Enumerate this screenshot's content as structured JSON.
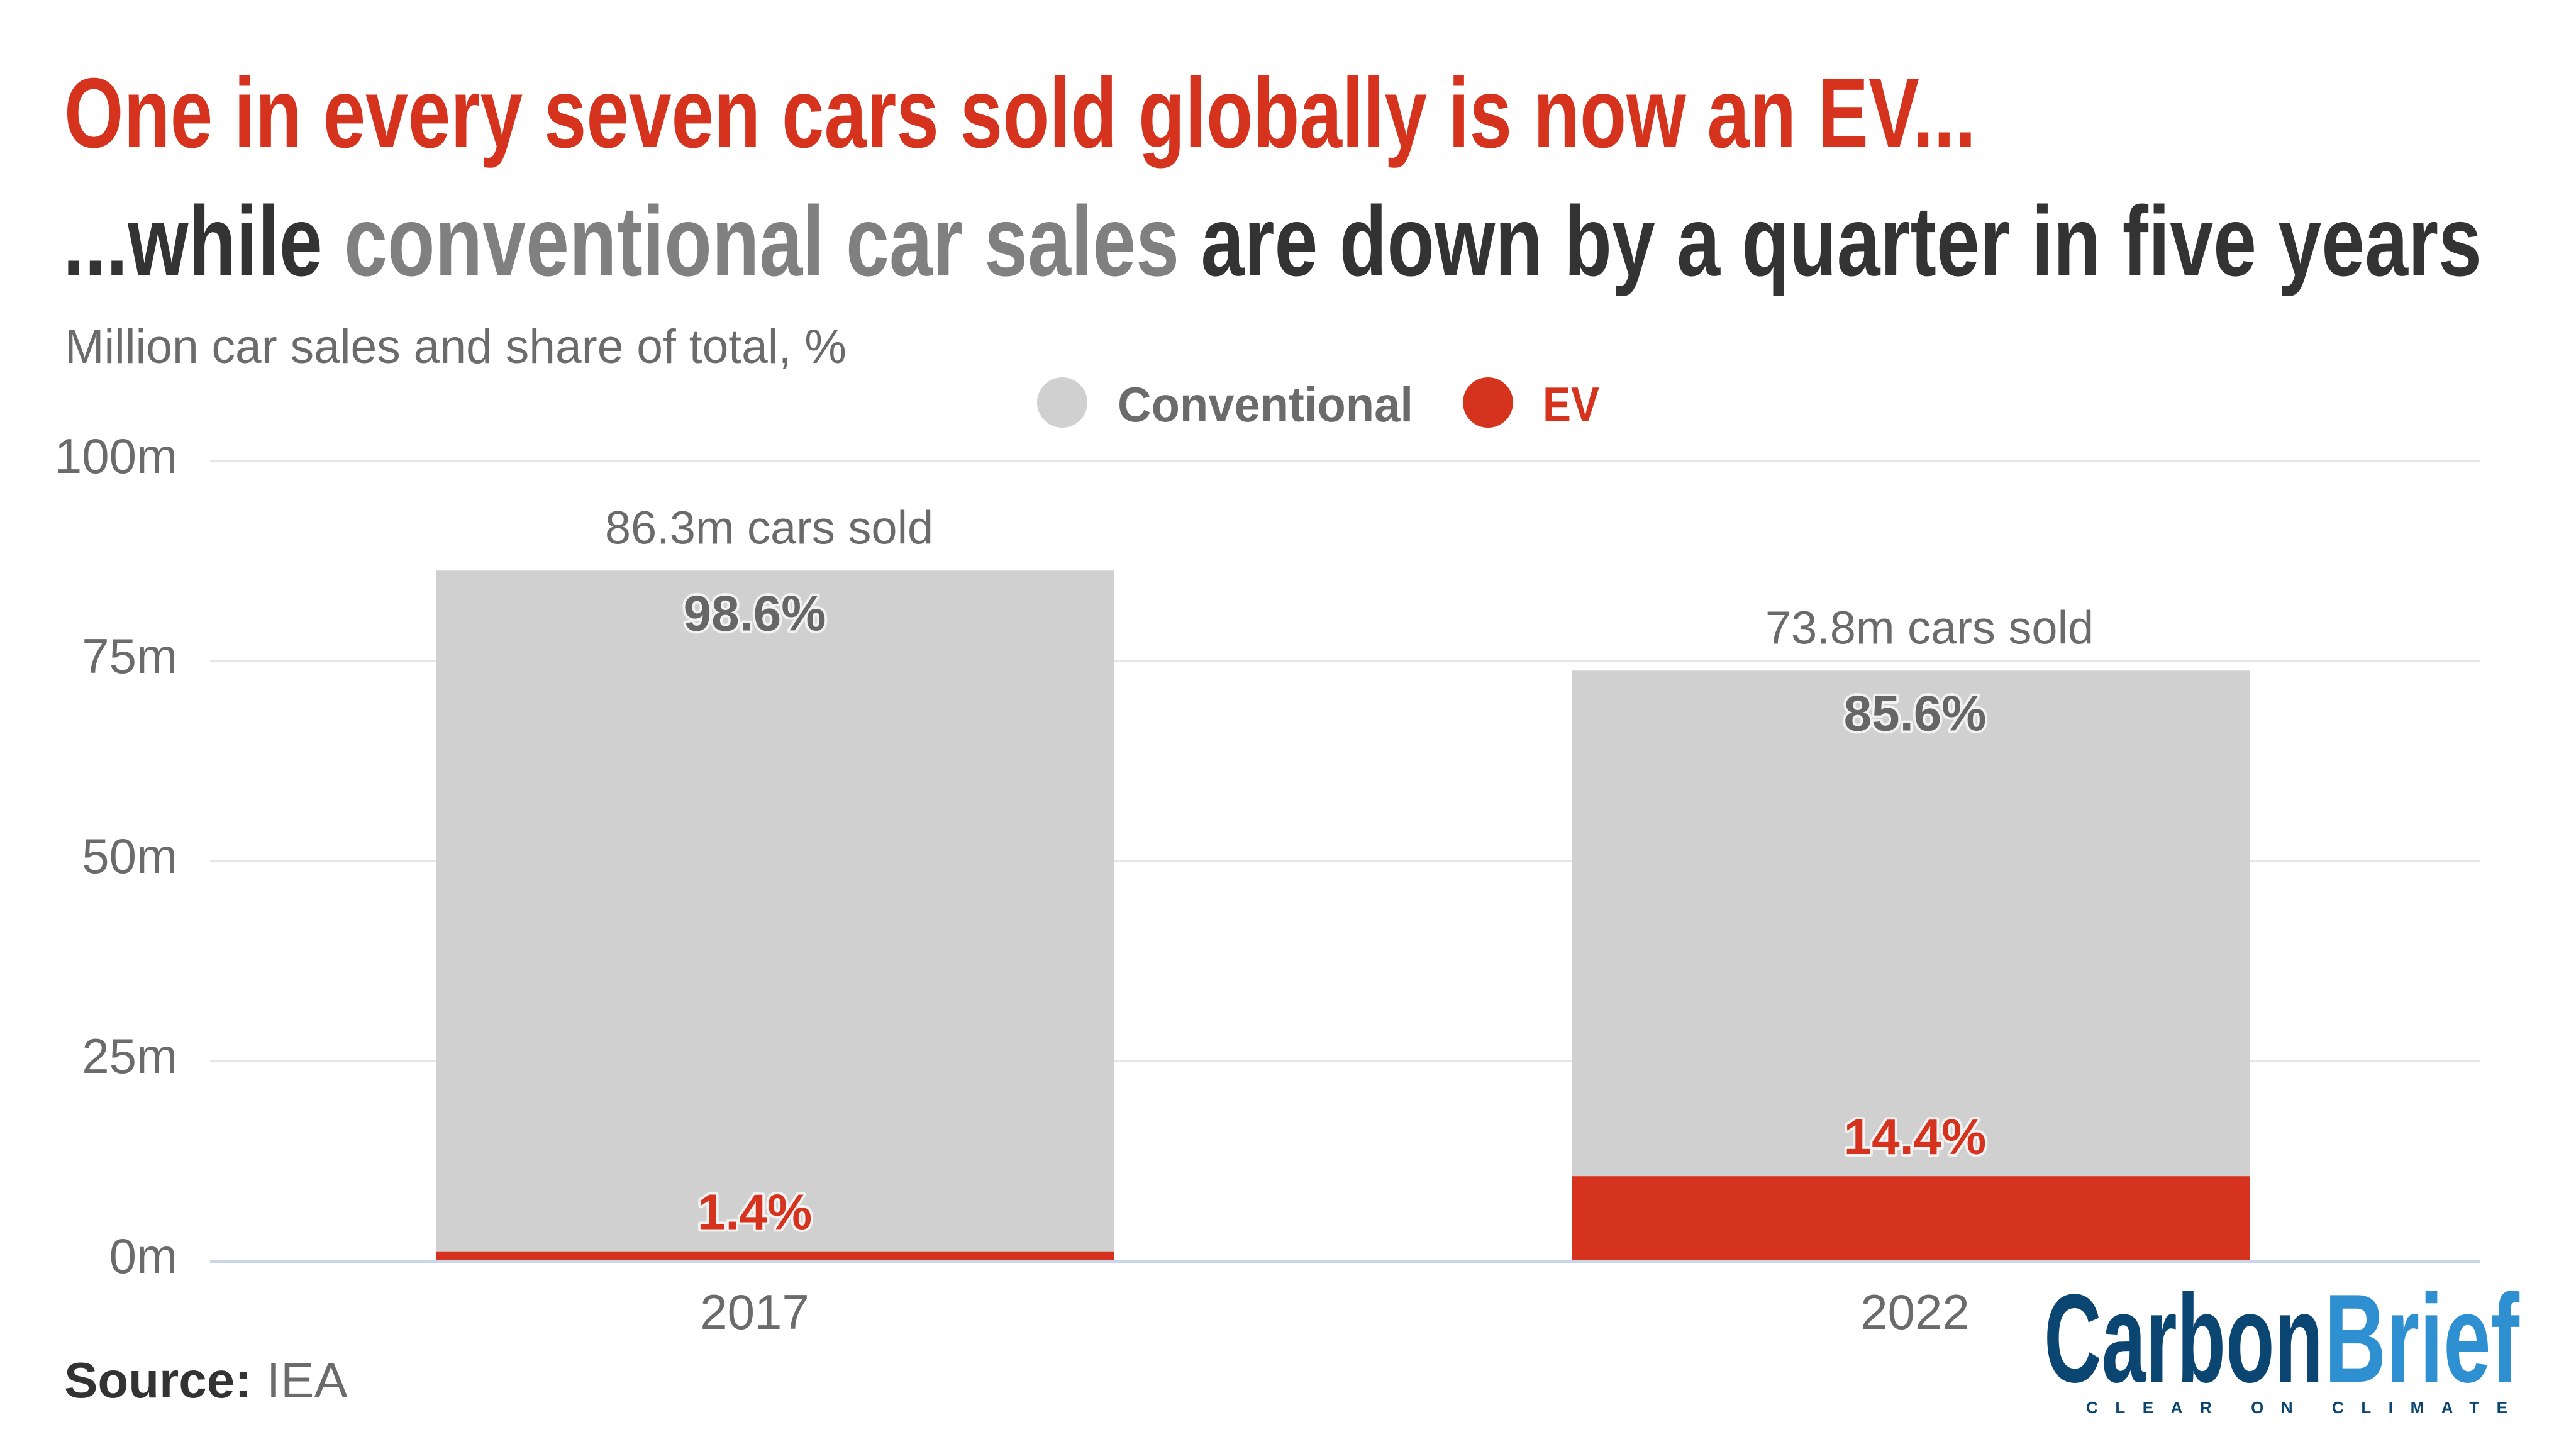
{
  "title": {
    "line1": "One in every seven cars sold globally is now an EV...",
    "line2_parts": [
      {
        "text": "...while ",
        "tone": "dark"
      },
      {
        "text": "conventional car sales",
        "tone": "gray"
      },
      {
        "text": " are down by a quarter in five years",
        "tone": "dark"
      }
    ]
  },
  "subtitle": "Million car sales and share of total, %",
  "legend": [
    {
      "label": "Conventional",
      "color": "#d0d0d0",
      "text_color": "#6b6b6b",
      "icon": "circle-icon"
    },
    {
      "label": "EV",
      "color": "#d5331d",
      "text_color": "#d5331d",
      "icon": "circle-icon"
    }
  ],
  "source": {
    "label": "Source:",
    "value": "IEA"
  },
  "logo": {
    "part1": "Carbon",
    "part2": "Brief",
    "tagline": "CLEAR ON CLIMATE",
    "color1": "#0b4672",
    "color2": "#2e90d0"
  },
  "colors": {
    "conventional": "#d0d0d0",
    "ev": "#d5331d",
    "title_red": "#d5331d",
    "title_dark": "#333333",
    "title_gray": "#808080"
  },
  "chart_data": {
    "type": "bar",
    "stacked": true,
    "title": "One in every seven cars sold globally is now an EV... ...while conventional car sales are down by a quarter in five years",
    "subtitle": "Million car sales and share of total, %",
    "categories": [
      "2017",
      "2022"
    ],
    "series": [
      {
        "name": "Conventional",
        "values": [
          85.1,
          63.2
        ],
        "share_labels": [
          "98.6%",
          "85.6%"
        ],
        "color": "#d0d0d0"
      },
      {
        "name": "EV",
        "values": [
          1.2,
          10.6
        ],
        "share_labels": [
          "1.4%",
          "14.4%"
        ],
        "color": "#d5331d"
      }
    ],
    "totals": [
      86.3,
      73.8
    ],
    "total_labels": [
      "86.3m cars sold",
      "73.8m cars sold"
    ],
    "xlabel": "",
    "ylabel": "",
    "ylim": [
      0,
      100
    ],
    "yticks": [
      0,
      25,
      50,
      75,
      100
    ],
    "ytick_labels": [
      "0m",
      "25m",
      "50m",
      "75m",
      "100m"
    ],
    "grid": true,
    "legend_position": "top-center"
  }
}
